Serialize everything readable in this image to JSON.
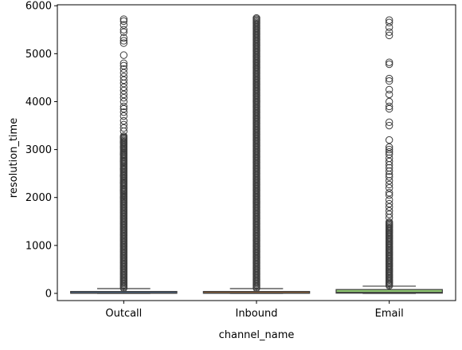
{
  "chart_data": {
    "type": "box",
    "title": "",
    "xlabel": "channel_name",
    "ylabel": "resolution_time",
    "ylim": [
      -150,
      6020
    ],
    "yticks": [
      0,
      1000,
      2000,
      3000,
      4000,
      5000,
      6000
    ],
    "categories": [
      "Outcall",
      "Inbound",
      "Email"
    ],
    "grid": false,
    "series": [
      {
        "category": "Outcall",
        "color": "#5b8fc8",
        "q1": 2,
        "median": 10,
        "q3": 40,
        "whisker_low": 0,
        "whisker_high": 100,
        "outlier_ranges": [
          [
            110,
            2000
          ],
          [
            2000,
            3300
          ]
        ],
        "outliers": [
          2150,
          2300,
          2450,
          2600,
          2750,
          2900,
          3050,
          3150,
          3250,
          3380,
          3450,
          3520,
          3600,
          3700,
          3780,
          3850,
          3900,
          4000,
          4080,
          4150,
          4230,
          4300,
          4380,
          4450,
          4520,
          4600,
          4680,
          4750,
          4800,
          4970,
          5220,
          5270,
          5330,
          5450,
          5500,
          5600,
          5680,
          5720
        ]
      },
      {
        "category": "Inbound",
        "color": "#ef8a3a",
        "q1": 2,
        "median": 10,
        "q3": 40,
        "whisker_low": 0,
        "whisker_high": 100,
        "outlier_ranges": [
          [
            110,
            5750
          ]
        ],
        "outliers": []
      },
      {
        "category": "Email",
        "color": "#8fc872",
        "q1": 5,
        "median": 20,
        "q3": 80,
        "whisker_low": 0,
        "whisker_high": 150,
        "outlier_ranges": [
          [
            160,
            1500
          ]
        ],
        "outliers": [
          1580,
          1650,
          1720,
          1800,
          1870,
          1950,
          2050,
          2100,
          2200,
          2270,
          2350,
          2430,
          2480,
          2550,
          2620,
          2680,
          2750,
          2820,
          2900,
          2950,
          3000,
          3050,
          3200,
          3500,
          3570,
          3850,
          3900,
          4000,
          4150,
          4250,
          4430,
          4480,
          4780,
          4820,
          5380,
          5450,
          5550,
          5650,
          5700
        ]
      }
    ]
  }
}
